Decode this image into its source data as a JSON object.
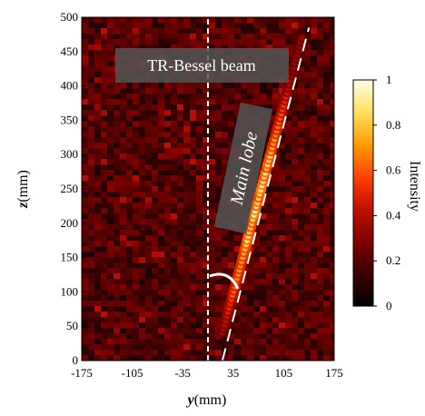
{
  "chart_data": {
    "type": "heatmap",
    "title": "",
    "xlabel_var": "y",
    "xlabel_unit": "(mm)",
    "ylabel_var": "z",
    "ylabel_unit": "(mm)",
    "xlim": [
      -175,
      175
    ],
    "ylim": [
      0,
      500
    ],
    "xticks": [
      -175,
      -105,
      -35,
      35,
      105,
      175
    ],
    "yticks": [
      0,
      50,
      100,
      150,
      200,
      250,
      300,
      350,
      400,
      450,
      500
    ],
    "xtick_labels": [
      "-175",
      "-105",
      "-35",
      "35",
      "105",
      "175"
    ],
    "ytick_labels": [
      "0",
      "50",
      "100",
      "150",
      "200",
      "250",
      "300",
      "350",
      "400",
      "450",
      "500"
    ],
    "colorbar": {
      "label": "Intensity",
      "range": [
        0,
        1
      ],
      "ticks": [
        0,
        0.2,
        0.4,
        0.6,
        0.8,
        1
      ],
      "tick_labels": [
        "0",
        "0.2",
        "0.4",
        "0.6",
        "0.8",
        "1"
      ],
      "colormap": [
        "#000000",
        "#3a0000",
        "#7a0000",
        "#c01000",
        "#ff4000",
        "#ff9a00",
        "#ffe060",
        "#ffffe8"
      ]
    },
    "main_lobe": {
      "start": {
        "y": 20,
        "z": 40
      },
      "end": {
        "y": 130,
        "z": 470
      },
      "peak_intensity": 1
    },
    "reference_lines": [
      {
        "kind": "vertical",
        "y": 0,
        "color": "#ffffff",
        "style": "dashed"
      },
      {
        "kind": "slanted",
        "from": {
          "y": 20,
          "z": 0
        },
        "to": {
          "y": 140,
          "z": 485
        },
        "color": "#ffffff",
        "style": "dashed"
      }
    ],
    "annotations": [
      {
        "text": "TR-Bessel beam",
        "at": {
          "y": -30,
          "z": 425
        }
      },
      {
        "text": "Main lobe",
        "at": {
          "y": 60,
          "z": 275
        }
      }
    ]
  }
}
